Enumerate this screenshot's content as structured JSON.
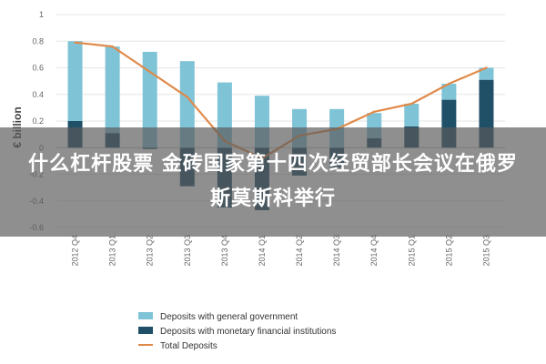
{
  "headline": "什么杠杆股票 金砖国家第十四次经贸部长会议在俄罗斯莫斯科举行",
  "chart_data": {
    "type": "bar",
    "categories": [
      "2012 Q4",
      "2013 Q1",
      "2013 Q2",
      "2013 Q3",
      "2013 Q4",
      "2014 Q1",
      "2014 Q2",
      "2014 Q3",
      "2014 Q4",
      "2015 Q1",
      "2015 Q2",
      "2015 Q3"
    ],
    "series": [
      {
        "name": "Deposits with general government",
        "kind": "bar",
        "color": "#7fc3d6",
        "values": [
          0.6,
          0.65,
          0.72,
          0.65,
          0.49,
          0.39,
          0.29,
          0.29,
          0.19,
          0.17,
          0.12,
          0.09
        ]
      },
      {
        "name": "Deposits with monetary financial institutions",
        "kind": "bar",
        "color": "#1f5068",
        "values": [
          0.2,
          0.11,
          -0.01,
          -0.29,
          -0.45,
          -0.47,
          -0.21,
          -0.15,
          0.07,
          0.16,
          0.36,
          0.51
        ]
      },
      {
        "name": "Total Deposits",
        "kind": "line",
        "color": "#e08a4a",
        "values": [
          0.79,
          0.76,
          0.57,
          0.38,
          0.05,
          -0.08,
          0.09,
          0.14,
          0.27,
          0.33,
          0.48,
          0.6
        ]
      }
    ],
    "ylabel": "€ billion",
    "ylim": [
      -0.6,
      1.0
    ],
    "yticks": [
      "1",
      "0.8",
      "0.6",
      "0.4",
      "0.2",
      "0",
      "-0.2",
      "-0.4",
      "-0.6"
    ],
    "grid": true,
    "legend_position": "bottom-left"
  }
}
